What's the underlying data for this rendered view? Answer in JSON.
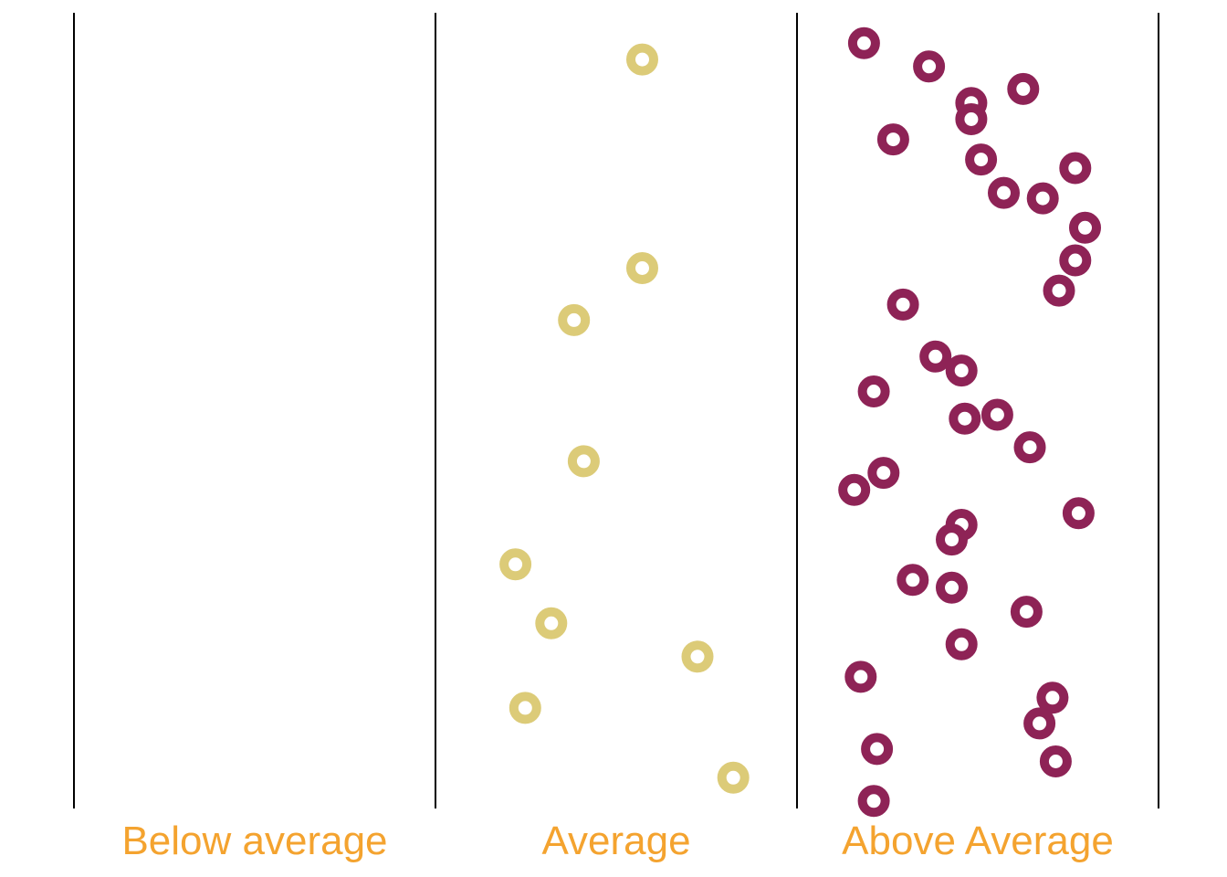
{
  "chart_data": {
    "type": "scatter",
    "title": "",
    "xlabel": "",
    "ylabel": "",
    "categories": [
      "Below average",
      "Average",
      "Above Average"
    ],
    "series": [
      {
        "category": "Average",
        "color": "#DCCB78",
        "x": [
          0.58,
          0.58,
          0.37,
          0.4,
          0.19,
          0.3,
          0.75,
          0.22,
          0.86
        ],
        "y": [
          0.961,
          0.692,
          0.625,
          0.443,
          0.31,
          0.234,
          0.191,
          0.125,
          0.035
        ]
      },
      {
        "category": "Above Average",
        "color": "#8E2356",
        "x": [
          0.15,
          0.35,
          0.48,
          0.48,
          0.64,
          0.24,
          0.51,
          0.8,
          0.58,
          0.7,
          0.83,
          0.8,
          0.75,
          0.27,
          0.37,
          0.45,
          0.18,
          0.46,
          0.56,
          0.66,
          0.21,
          0.12,
          0.81,
          0.45,
          0.42,
          0.3,
          0.42,
          0.65,
          0.45,
          0.14,
          0.73,
          0.69,
          0.19,
          0.74,
          0.18
        ],
        "y": [
          0.982,
          0.952,
          0.905,
          0.884,
          0.923,
          0.858,
          0.832,
          0.821,
          0.789,
          0.782,
          0.744,
          0.702,
          0.663,
          0.645,
          0.578,
          0.56,
          0.533,
          0.498,
          0.503,
          0.461,
          0.428,
          0.406,
          0.376,
          0.361,
          0.342,
          0.29,
          0.28,
          0.249,
          0.207,
          0.165,
          0.138,
          0.105,
          0.072,
          0.056,
          0.005
        ]
      }
    ],
    "legend": "none",
    "grid": false,
    "label_color": "#F4A32F"
  }
}
